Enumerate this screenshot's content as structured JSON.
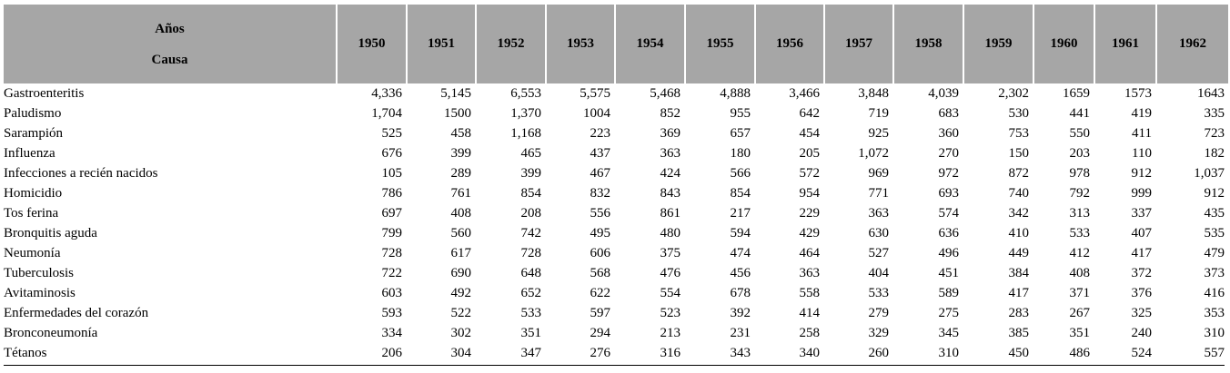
{
  "table": {
    "header": {
      "corner": [
        "Años",
        "Causa"
      ],
      "years": [
        "1950",
        "1951",
        "1952",
        "1953",
        "1954",
        "1955",
        "1956",
        "1957",
        "1958",
        "1959",
        "1960",
        "1961",
        "1962"
      ]
    },
    "rows": [
      {
        "cause": "Gastroenteritis",
        "values": [
          "4,336",
          "5,145",
          "6,553",
          "5,575",
          "5,468",
          "4,888",
          "3,466",
          "3,848",
          "4,039",
          "2,302",
          "1659",
          "1573",
          "1643"
        ]
      },
      {
        "cause": "Paludismo",
        "values": [
          "1,704",
          "1500",
          "1,370",
          "1004",
          "852",
          "955",
          "642",
          "719",
          "683",
          "530",
          "441",
          "419",
          "335"
        ]
      },
      {
        "cause": "Sarampión",
        "values": [
          "525",
          "458",
          "1,168",
          "223",
          "369",
          "657",
          "454",
          "925",
          "360",
          "753",
          "550",
          "411",
          "723"
        ]
      },
      {
        "cause": "Influenza",
        "values": [
          "676",
          "399",
          "465",
          "437",
          "363",
          "180",
          "205",
          "1,072",
          "270",
          "150",
          "203",
          "110",
          "182"
        ]
      },
      {
        "cause": "Infecciones a recién nacidos",
        "values": [
          "105",
          "289",
          "399",
          "467",
          "424",
          "566",
          "572",
          "969",
          "972",
          "872",
          "978",
          "912",
          "1,037"
        ]
      },
      {
        "cause": "Homicidio",
        "values": [
          "786",
          "761",
          "854",
          "832",
          "843",
          "854",
          "954",
          "771",
          "693",
          "740",
          "792",
          "999",
          "912"
        ]
      },
      {
        "cause": "Tos ferina",
        "values": [
          "697",
          "408",
          "208",
          "556",
          "861",
          "217",
          "229",
          "363",
          "574",
          "342",
          "313",
          "337",
          "435"
        ]
      },
      {
        "cause": "Bronquitis aguda",
        "values": [
          "799",
          "560",
          "742",
          "495",
          "480",
          "594",
          "429",
          "630",
          "636",
          "410",
          "533",
          "407",
          "535"
        ]
      },
      {
        "cause": "Neumonía",
        "values": [
          "728",
          "617",
          "728",
          "606",
          "375",
          "474",
          "464",
          "527",
          "496",
          "449",
          "412",
          "417",
          "479"
        ]
      },
      {
        "cause": "Tuberculosis",
        "values": [
          "722",
          "690",
          "648",
          "568",
          "476",
          "456",
          "363",
          "404",
          "451",
          "384",
          "408",
          "372",
          "373"
        ]
      },
      {
        "cause": "Avitaminosis",
        "values": [
          "603",
          "492",
          "652",
          "622",
          "554",
          "678",
          "558",
          "533",
          "589",
          "417",
          "371",
          "376",
          "416"
        ]
      },
      {
        "cause": "Enfermedades del corazón",
        "values": [
          "593",
          "522",
          "533",
          "597",
          "523",
          "392",
          "414",
          "279",
          "275",
          "283",
          "267",
          "325",
          "353"
        ]
      },
      {
        "cause": "Bronconeumonía",
        "values": [
          "334",
          "302",
          "351",
          "294",
          "213",
          "231",
          "258",
          "329",
          "345",
          "385",
          "351",
          "240",
          "310"
        ]
      },
      {
        "cause": "Tétanos",
        "values": [
          "206",
          "304",
          "347",
          "276",
          "316",
          "343",
          "340",
          "260",
          "310",
          "450",
          "486",
          "524",
          "557"
        ]
      }
    ]
  }
}
